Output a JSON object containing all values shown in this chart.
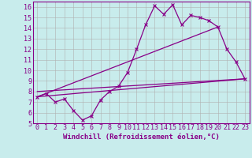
{
  "background_color": "#c8ecec",
  "grid_color": "#b0b0b0",
  "line_color": "#880088",
  "xlabel": "Windchill (Refroidissement éolien,°C)",
  "xlabel_fontsize": 6.5,
  "tick_fontsize": 6.0,
  "xlim": [
    -0.5,
    23.5
  ],
  "ylim": [
    5,
    16.5
  ],
  "x_ticks": [
    0,
    1,
    2,
    3,
    4,
    5,
    6,
    7,
    8,
    9,
    10,
    11,
    12,
    13,
    14,
    15,
    16,
    17,
    18,
    19,
    20,
    21,
    22,
    23
  ],
  "y_ticks": [
    5,
    6,
    7,
    8,
    9,
    10,
    11,
    12,
    13,
    14,
    15,
    16
  ],
  "series1_x": [
    0,
    1,
    2,
    3,
    4,
    5,
    6,
    7,
    8,
    9,
    10,
    11,
    12,
    13,
    14,
    15,
    16,
    17,
    18,
    19,
    20,
    21,
    22,
    23
  ],
  "series1_y": [
    7.5,
    7.8,
    7.0,
    7.3,
    6.2,
    5.3,
    5.7,
    7.2,
    8.0,
    8.5,
    9.8,
    12.0,
    14.3,
    16.1,
    15.3,
    16.2,
    14.3,
    15.2,
    15.0,
    14.7,
    14.1,
    12.0,
    10.8,
    9.2
  ],
  "series2_x": [
    0,
    23
  ],
  "series2_y": [
    7.5,
    9.2
  ],
  "series3_x": [
    0,
    20
  ],
  "series3_y": [
    7.5,
    14.1
  ],
  "series4_x": [
    0,
    23
  ],
  "series4_y": [
    8.0,
    9.2
  ]
}
